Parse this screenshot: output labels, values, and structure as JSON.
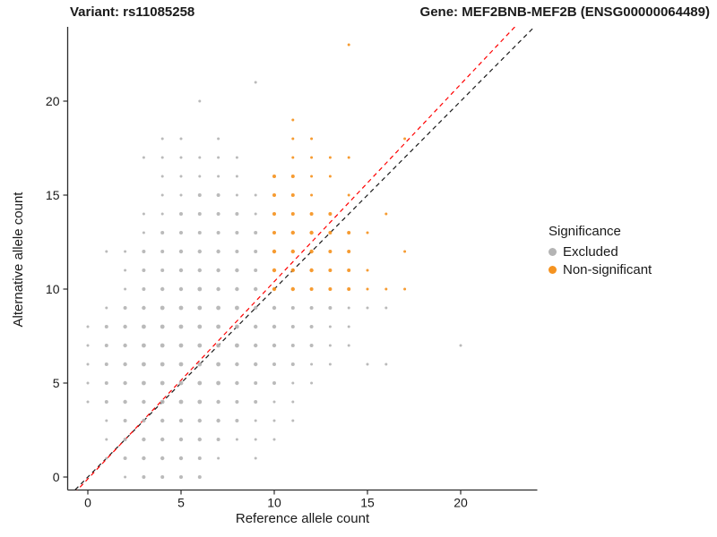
{
  "titles": {
    "left": "Variant: rs11085258",
    "right": "Gene: MEF2BNB-MEF2B (ENSG00000064489)"
  },
  "axes": {
    "x_label": "Reference allele count",
    "y_label": "Alternative allele count"
  },
  "legend": {
    "title": "Significance",
    "items": [
      {
        "label": "Excluded",
        "color": "#b4b4b4"
      },
      {
        "label": "Non-significant",
        "color": "#f59320"
      }
    ]
  },
  "chart_data": {
    "type": "scatter",
    "title": "Variant: rs11085258 / Gene: MEF2BNB-MEF2B (ENSG00000064489)",
    "xlabel": "Reference allele count",
    "ylabel": "Alternative allele count",
    "x_ticks": [
      0,
      5,
      10,
      15,
      20
    ],
    "y_ticks": [
      0,
      5,
      10,
      15,
      20
    ],
    "xlim": [
      -1.2,
      24.2
    ],
    "ylim": [
      -0.7,
      23.9
    ],
    "grid": false,
    "legend_position": "right",
    "series": [
      {
        "name": "Excluded",
        "color": "#b4b4b4",
        "points": [
          [
            2,
            0,
            1.5
          ],
          [
            3,
            0,
            2
          ],
          [
            4,
            0,
            2
          ],
          [
            5,
            0,
            2
          ],
          [
            6,
            0,
            2
          ],
          [
            1,
            1,
            1.5
          ],
          [
            2,
            1,
            2
          ],
          [
            3,
            1,
            2.2
          ],
          [
            4,
            1,
            2.2
          ],
          [
            5,
            1,
            2.2
          ],
          [
            6,
            1,
            2
          ],
          [
            7,
            1,
            1.5
          ],
          [
            9,
            1,
            1.5
          ],
          [
            1,
            2,
            1.5
          ],
          [
            2,
            2,
            2
          ],
          [
            3,
            2,
            2.2
          ],
          [
            4,
            2,
            2.2
          ],
          [
            5,
            2,
            2.2
          ],
          [
            6,
            2,
            2.2
          ],
          [
            7,
            2,
            2
          ],
          [
            8,
            2,
            1.5
          ],
          [
            9,
            2,
            1.5
          ],
          [
            10,
            2,
            1.5
          ],
          [
            1,
            3,
            1.5
          ],
          [
            2,
            3,
            2
          ],
          [
            3,
            3,
            2.2
          ],
          [
            4,
            3,
            2.2
          ],
          [
            5,
            3,
            2.2
          ],
          [
            6,
            3,
            2.2
          ],
          [
            7,
            3,
            2.2
          ],
          [
            8,
            3,
            2
          ],
          [
            9,
            3,
            1.5
          ],
          [
            10,
            3,
            1.5
          ],
          [
            11,
            3,
            1.5
          ],
          [
            0,
            4,
            1.5
          ],
          [
            1,
            4,
            2
          ],
          [
            2,
            4,
            2.2
          ],
          [
            3,
            4,
            2.2
          ],
          [
            4,
            4,
            2.4
          ],
          [
            5,
            4,
            2.4
          ],
          [
            6,
            4,
            2.4
          ],
          [
            7,
            4,
            2.2
          ],
          [
            8,
            4,
            2
          ],
          [
            9,
            4,
            2
          ],
          [
            10,
            4,
            1.5
          ],
          [
            11,
            4,
            1.5
          ],
          [
            0,
            5,
            1.5
          ],
          [
            1,
            5,
            2
          ],
          [
            2,
            5,
            2.2
          ],
          [
            3,
            5,
            2.4
          ],
          [
            4,
            5,
            2.4
          ],
          [
            5,
            5,
            2.4
          ],
          [
            6,
            5,
            2.4
          ],
          [
            7,
            5,
            2.4
          ],
          [
            8,
            5,
            2.2
          ],
          [
            9,
            5,
            2
          ],
          [
            10,
            5,
            2
          ],
          [
            11,
            5,
            1.5
          ],
          [
            12,
            5,
            1.5
          ],
          [
            0,
            6,
            1.5
          ],
          [
            1,
            6,
            2
          ],
          [
            2,
            6,
            2.2
          ],
          [
            3,
            6,
            2.4
          ],
          [
            4,
            6,
            2.4
          ],
          [
            5,
            6,
            2.4
          ],
          [
            6,
            6,
            2.4
          ],
          [
            7,
            6,
            2.4
          ],
          [
            8,
            6,
            2.2
          ],
          [
            9,
            6,
            2.2
          ],
          [
            10,
            6,
            2
          ],
          [
            11,
            6,
            2
          ],
          [
            12,
            6,
            1.5
          ],
          [
            13,
            6,
            1.5
          ],
          [
            15,
            6,
            1.5
          ],
          [
            16,
            6,
            1.5
          ],
          [
            0,
            7,
            1.5
          ],
          [
            1,
            7,
            2
          ],
          [
            2,
            7,
            2.2
          ],
          [
            3,
            7,
            2.4
          ],
          [
            4,
            7,
            2.4
          ],
          [
            5,
            7,
            2.4
          ],
          [
            6,
            7,
            2.4
          ],
          [
            7,
            7,
            2.4
          ],
          [
            8,
            7,
            2.4
          ],
          [
            9,
            7,
            2.2
          ],
          [
            10,
            7,
            2.2
          ],
          [
            11,
            7,
            2
          ],
          [
            12,
            7,
            2
          ],
          [
            13,
            7,
            1.5
          ],
          [
            14,
            7,
            1.5
          ],
          [
            20,
            7,
            1.5
          ],
          [
            0,
            8,
            1.5
          ],
          [
            1,
            8,
            2
          ],
          [
            2,
            8,
            2.2
          ],
          [
            3,
            8,
            2.4
          ],
          [
            4,
            8,
            2.4
          ],
          [
            5,
            8,
            2.4
          ],
          [
            6,
            8,
            2.4
          ],
          [
            7,
            8,
            2.4
          ],
          [
            8,
            8,
            2.4
          ],
          [
            9,
            8,
            2.2
          ],
          [
            10,
            8,
            2.2
          ],
          [
            11,
            8,
            2
          ],
          [
            12,
            8,
            2
          ],
          [
            13,
            8,
            1.5
          ],
          [
            14,
            8,
            1.5
          ],
          [
            1,
            9,
            1.5
          ],
          [
            2,
            9,
            2
          ],
          [
            3,
            9,
            2.2
          ],
          [
            4,
            9,
            2.4
          ],
          [
            5,
            9,
            2.4
          ],
          [
            6,
            9,
            2.4
          ],
          [
            7,
            9,
            2.4
          ],
          [
            8,
            9,
            2.4
          ],
          [
            9,
            9,
            2.2
          ],
          [
            10,
            9,
            2.2
          ],
          [
            11,
            9,
            2
          ],
          [
            12,
            9,
            2
          ],
          [
            13,
            9,
            2
          ],
          [
            14,
            9,
            1.5
          ],
          [
            15,
            9,
            1.5
          ],
          [
            16,
            9,
            1.5
          ],
          [
            2,
            10,
            1.5
          ],
          [
            3,
            10,
            2
          ],
          [
            4,
            10,
            2.2
          ],
          [
            5,
            10,
            2.2
          ],
          [
            6,
            10,
            2.4
          ],
          [
            7,
            10,
            2.2
          ],
          [
            8,
            10,
            2.2
          ],
          [
            9,
            10,
            2.2
          ],
          [
            2,
            11,
            1.5
          ],
          [
            3,
            11,
            2
          ],
          [
            4,
            11,
            2
          ],
          [
            5,
            11,
            2.2
          ],
          [
            6,
            11,
            2.2
          ],
          [
            7,
            11,
            2.2
          ],
          [
            8,
            11,
            2.2
          ],
          [
            9,
            11,
            2
          ],
          [
            1,
            12,
            1.5
          ],
          [
            2,
            12,
            1.5
          ],
          [
            3,
            12,
            2
          ],
          [
            4,
            12,
            2
          ],
          [
            5,
            12,
            2.2
          ],
          [
            6,
            12,
            2.2
          ],
          [
            7,
            12,
            2.2
          ],
          [
            8,
            12,
            2
          ],
          [
            9,
            12,
            2
          ],
          [
            3,
            13,
            1.5
          ],
          [
            4,
            13,
            2
          ],
          [
            5,
            13,
            2
          ],
          [
            6,
            13,
            2
          ],
          [
            7,
            13,
            2
          ],
          [
            8,
            13,
            2
          ],
          [
            9,
            13,
            2
          ],
          [
            3,
            14,
            1.5
          ],
          [
            4,
            14,
            1.5
          ],
          [
            5,
            14,
            2
          ],
          [
            6,
            14,
            2
          ],
          [
            7,
            14,
            2
          ],
          [
            8,
            14,
            2
          ],
          [
            9,
            14,
            1.5
          ],
          [
            4,
            15,
            1.5
          ],
          [
            5,
            15,
            1.5
          ],
          [
            6,
            15,
            2
          ],
          [
            7,
            15,
            2
          ],
          [
            8,
            15,
            1.5
          ],
          [
            9,
            15,
            1.5
          ],
          [
            4,
            16,
            1.5
          ],
          [
            5,
            16,
            1.5
          ],
          [
            6,
            16,
            1.5
          ],
          [
            7,
            16,
            1.5
          ],
          [
            8,
            16,
            1.5
          ],
          [
            3,
            17,
            1.5
          ],
          [
            4,
            17,
            1.5
          ],
          [
            5,
            17,
            1.5
          ],
          [
            6,
            17,
            1.5
          ],
          [
            7,
            17,
            1.5
          ],
          [
            8,
            17,
            1.5
          ],
          [
            4,
            18,
            1.5
          ],
          [
            5,
            18,
            1.5
          ],
          [
            7,
            18,
            1.5
          ],
          [
            6,
            20,
            1.5
          ],
          [
            9,
            21,
            1.5
          ]
        ]
      },
      {
        "name": "Non-significant",
        "color": "#f59320",
        "points": [
          [
            10,
            10,
            2.2
          ],
          [
            11,
            10,
            2.2
          ],
          [
            12,
            10,
            2
          ],
          [
            13,
            10,
            2
          ],
          [
            14,
            10,
            2
          ],
          [
            15,
            10,
            1.5
          ],
          [
            16,
            10,
            1.5
          ],
          [
            17,
            10,
            1.5
          ],
          [
            10,
            11,
            2.2
          ],
          [
            11,
            11,
            2.2
          ],
          [
            12,
            11,
            2.2
          ],
          [
            13,
            11,
            2
          ],
          [
            14,
            11,
            2
          ],
          [
            15,
            11,
            1.5
          ],
          [
            10,
            12,
            2.2
          ],
          [
            11,
            12,
            2.2
          ],
          [
            12,
            12,
            2.2
          ],
          [
            13,
            12,
            2
          ],
          [
            14,
            12,
            2
          ],
          [
            17,
            12,
            1.5
          ],
          [
            10,
            13,
            2
          ],
          [
            11,
            13,
            2.2
          ],
          [
            12,
            13,
            2.2
          ],
          [
            13,
            13,
            2
          ],
          [
            14,
            13,
            2
          ],
          [
            15,
            13,
            1.5
          ],
          [
            10,
            14,
            2
          ],
          [
            11,
            14,
            2
          ],
          [
            12,
            14,
            2
          ],
          [
            13,
            14,
            2
          ],
          [
            16,
            14,
            1.5
          ],
          [
            10,
            15,
            2
          ],
          [
            11,
            15,
            2
          ],
          [
            12,
            15,
            1.5
          ],
          [
            14,
            15,
            1.5
          ],
          [
            10,
            16,
            2
          ],
          [
            11,
            16,
            2
          ],
          [
            12,
            16,
            1.5
          ],
          [
            13,
            16,
            1.5
          ],
          [
            11,
            17,
            1.5
          ],
          [
            12,
            17,
            1.5
          ],
          [
            13,
            17,
            1.5
          ],
          [
            14,
            17,
            1.5
          ],
          [
            11,
            18,
            1.5
          ],
          [
            12,
            18,
            1.5
          ],
          [
            17,
            18,
            1.5
          ],
          [
            11,
            19,
            1.5
          ],
          [
            14,
            23,
            1.5
          ]
        ]
      }
    ],
    "lines": [
      {
        "name": "identity",
        "slope": 1.0,
        "intercept": 0.0,
        "color": "#1a1a1a",
        "dash": "5,4"
      },
      {
        "name": "fit",
        "slope": 1.05,
        "intercept": -0.1,
        "color": "#ff0000",
        "dash": "5,4"
      }
    ]
  }
}
